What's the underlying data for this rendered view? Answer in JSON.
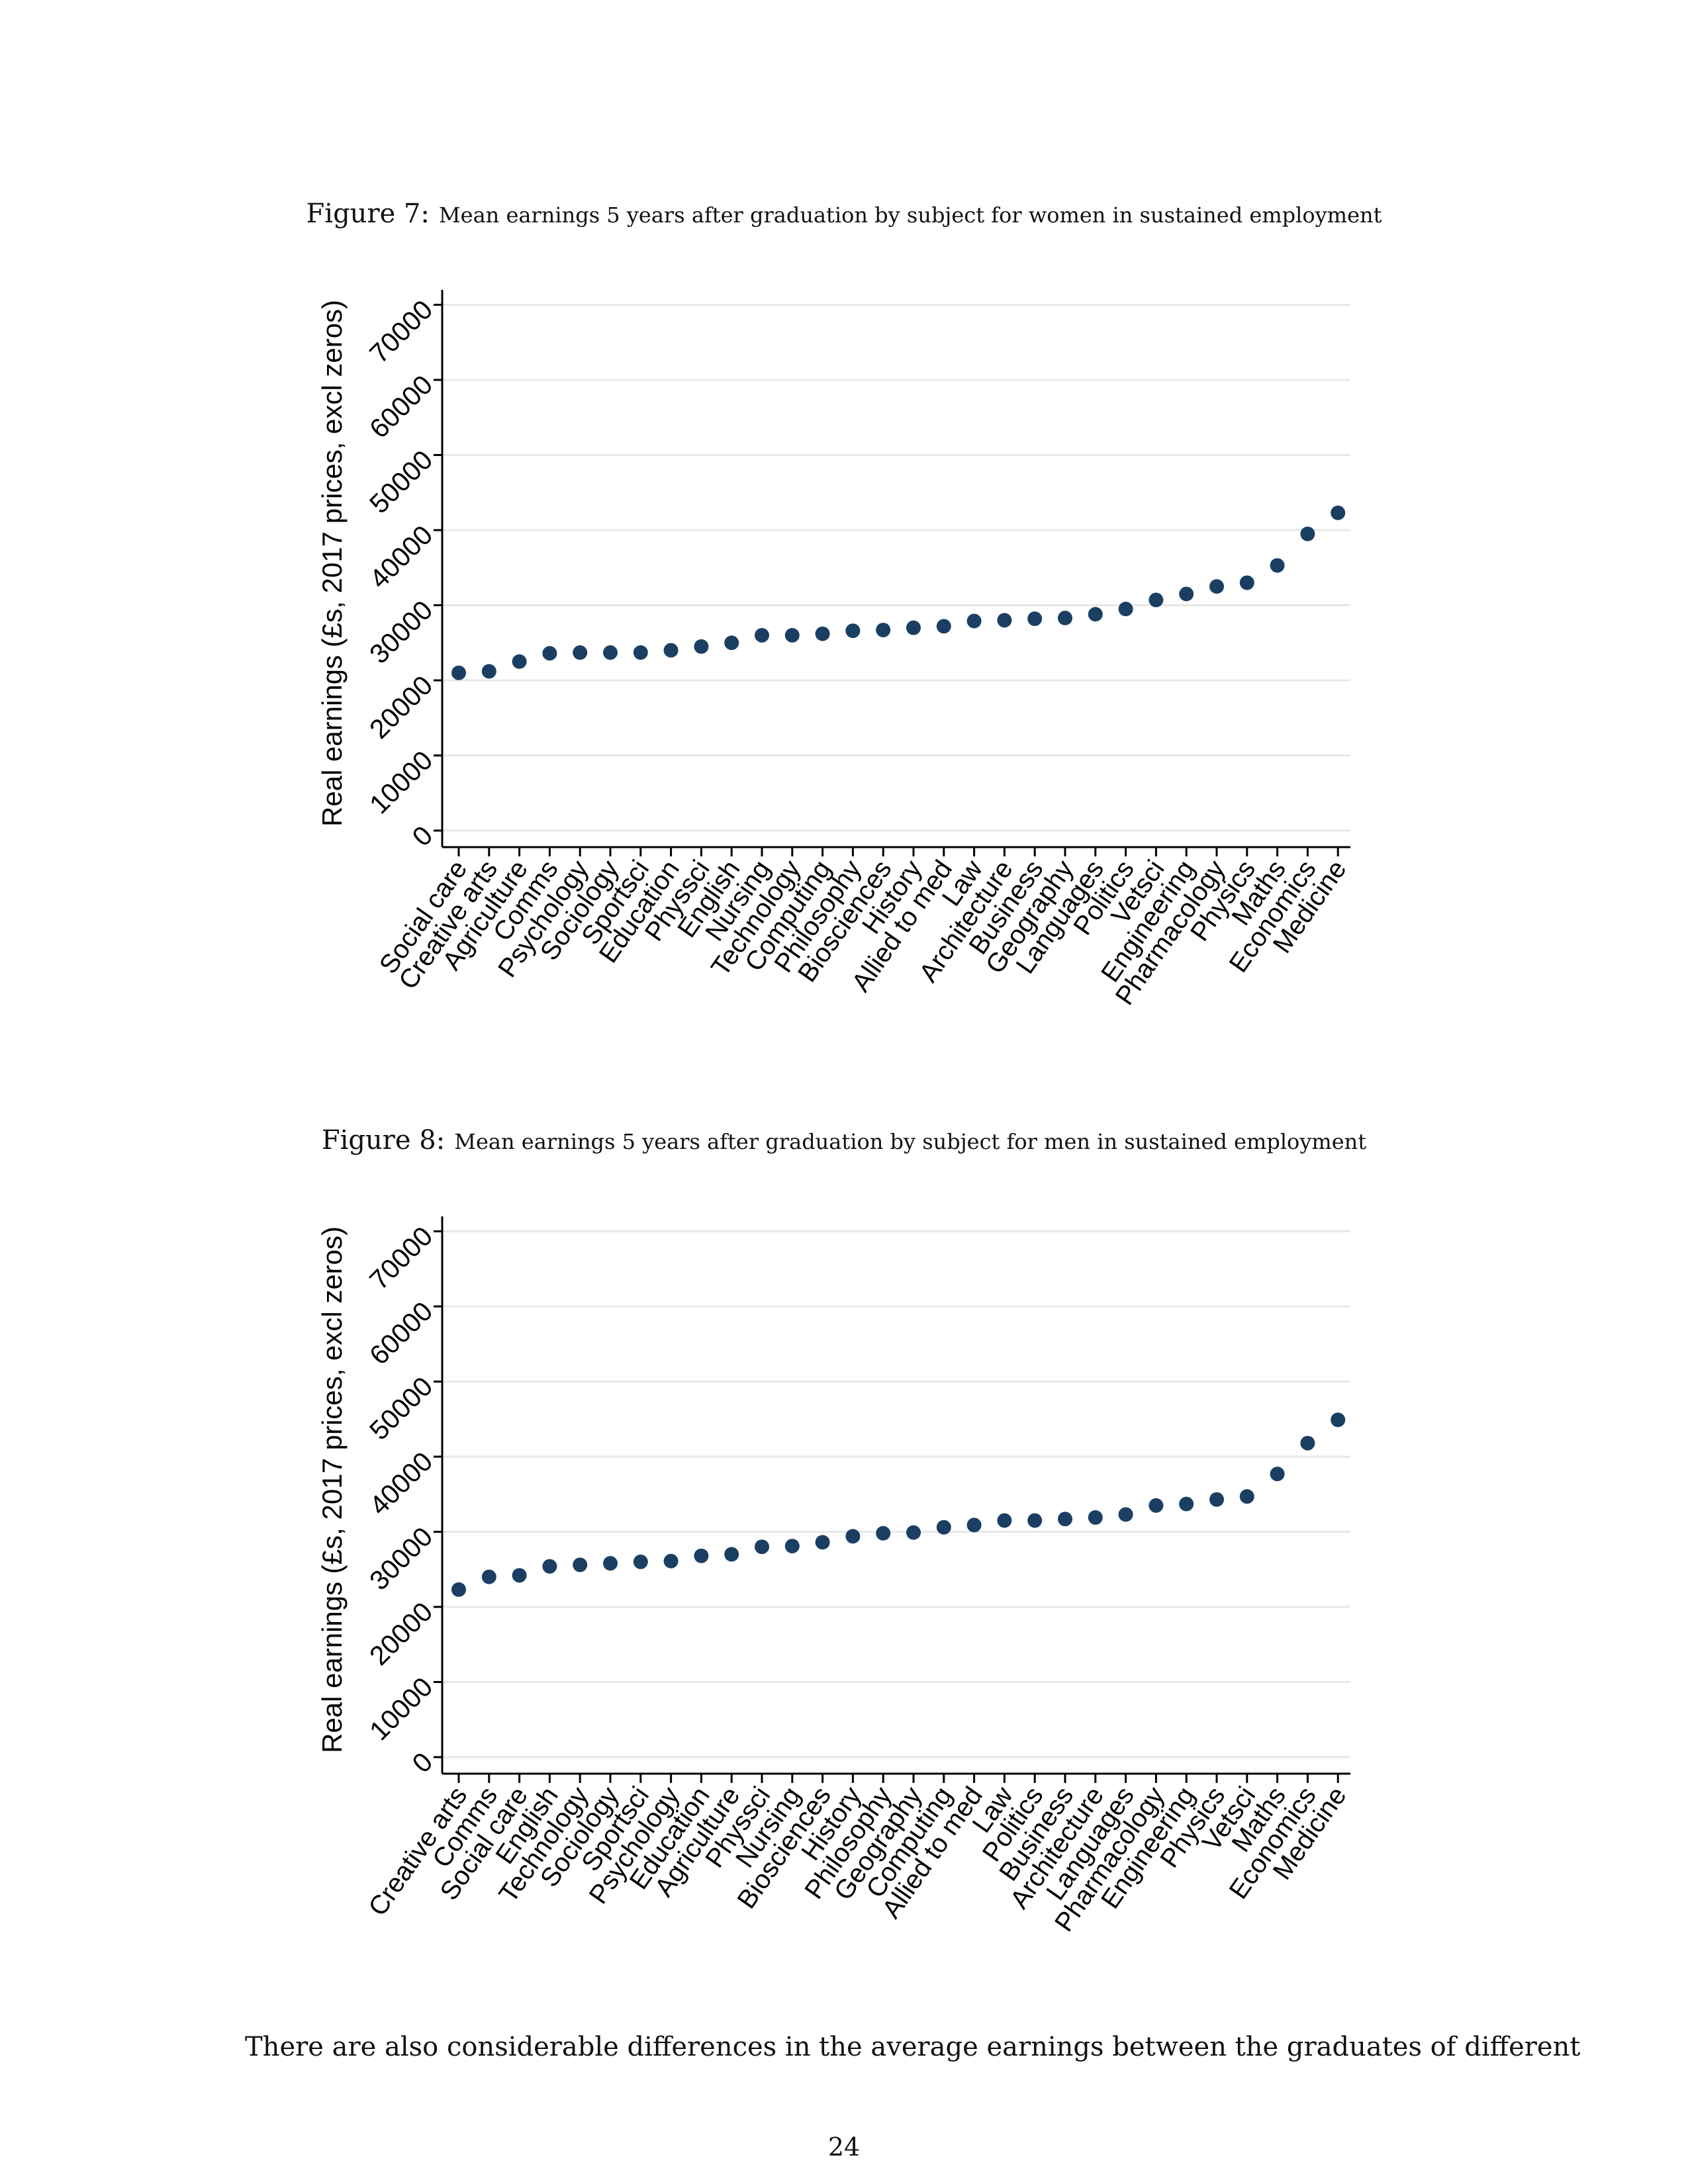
{
  "figures": [
    {
      "label": "Figure 7:",
      "caption": "Mean earnings 5 years after graduation by subject for women in sustained employment"
    },
    {
      "label": "Figure 8:",
      "caption": "Mean earnings 5 years after graduation by subject for men in sustained employment"
    }
  ],
  "chart_data": [
    {
      "type": "scatter",
      "title": "Mean earnings 5 years after graduation by subject for women in sustained employment",
      "xlabel": "",
      "ylabel": "Real earnings (£s, 2017 prices, excl zeros)",
      "ylim": [
        0,
        70000
      ],
      "yticks": [
        "0",
        "10000",
        "20000",
        "30000",
        "40000",
        "50000",
        "60000",
        "70000"
      ],
      "grid": true,
      "categories": [
        "Social care",
        "Creative arts",
        "Agriculture",
        "Comms",
        "Psychology",
        "Sociology",
        "Sportsci",
        "Education",
        "Physsci",
        "English",
        "Nursing",
        "Technology",
        "Computing",
        "Philosophy",
        "Biosciences",
        "History",
        "Allied to med",
        "Law",
        "Architecture",
        "Business",
        "Geography",
        "Languages",
        "Politics",
        "Vetsci",
        "Engineering",
        "Pharmacology",
        "Physics",
        "Maths",
        "Economics",
        "Medicine"
      ],
      "values": [
        21000,
        21200,
        22500,
        23600,
        23700,
        23700,
        23700,
        24000,
        24500,
        25000,
        26000,
        26000,
        26200,
        26600,
        26700,
        27000,
        27200,
        27900,
        28000,
        28200,
        28300,
        28800,
        29500,
        30700,
        31500,
        32500,
        33000,
        35300,
        39500,
        42300
      ]
    },
    {
      "type": "scatter",
      "title": "Mean earnings 5 years after graduation by subject for men in sustained employment",
      "xlabel": "",
      "ylabel": "Real earnings (£s, 2017 prices, excl zeros)",
      "ylim": [
        0,
        70000
      ],
      "yticks": [
        "0",
        "10000",
        "20000",
        "30000",
        "40000",
        "50000",
        "60000",
        "70000"
      ],
      "grid": true,
      "categories": [
        "Creative arts",
        "Comms",
        "Social care",
        "English",
        "Technology",
        "Sociology",
        "Sportsci",
        "Psychology",
        "Education",
        "Agriculture",
        "Physsci",
        "Nursing",
        "Biosciences",
        "History",
        "Philosophy",
        "Geography",
        "Computing",
        "Allied to med",
        "Law",
        "Politics",
        "Business",
        "Architecture",
        "Languages",
        "Pharmacology",
        "Engineering",
        "Physics",
        "Vetsci",
        "Maths",
        "Economics",
        "Medicine"
      ],
      "values": [
        22300,
        24000,
        24200,
        25400,
        25600,
        25800,
        26000,
        26100,
        26800,
        27000,
        28000,
        28100,
        28600,
        29400,
        29800,
        29900,
        30600,
        30900,
        31500,
        31500,
        31700,
        31900,
        32300,
        33500,
        33700,
        34300,
        34700,
        37700,
        41800,
        44900
      ]
    }
  ],
  "body_text": "There are also considerable differences in the average earnings between the graduates of different",
  "page_number": "24",
  "colors": {
    "dot": "#1a3f63",
    "grid": "#e8e8e8"
  }
}
